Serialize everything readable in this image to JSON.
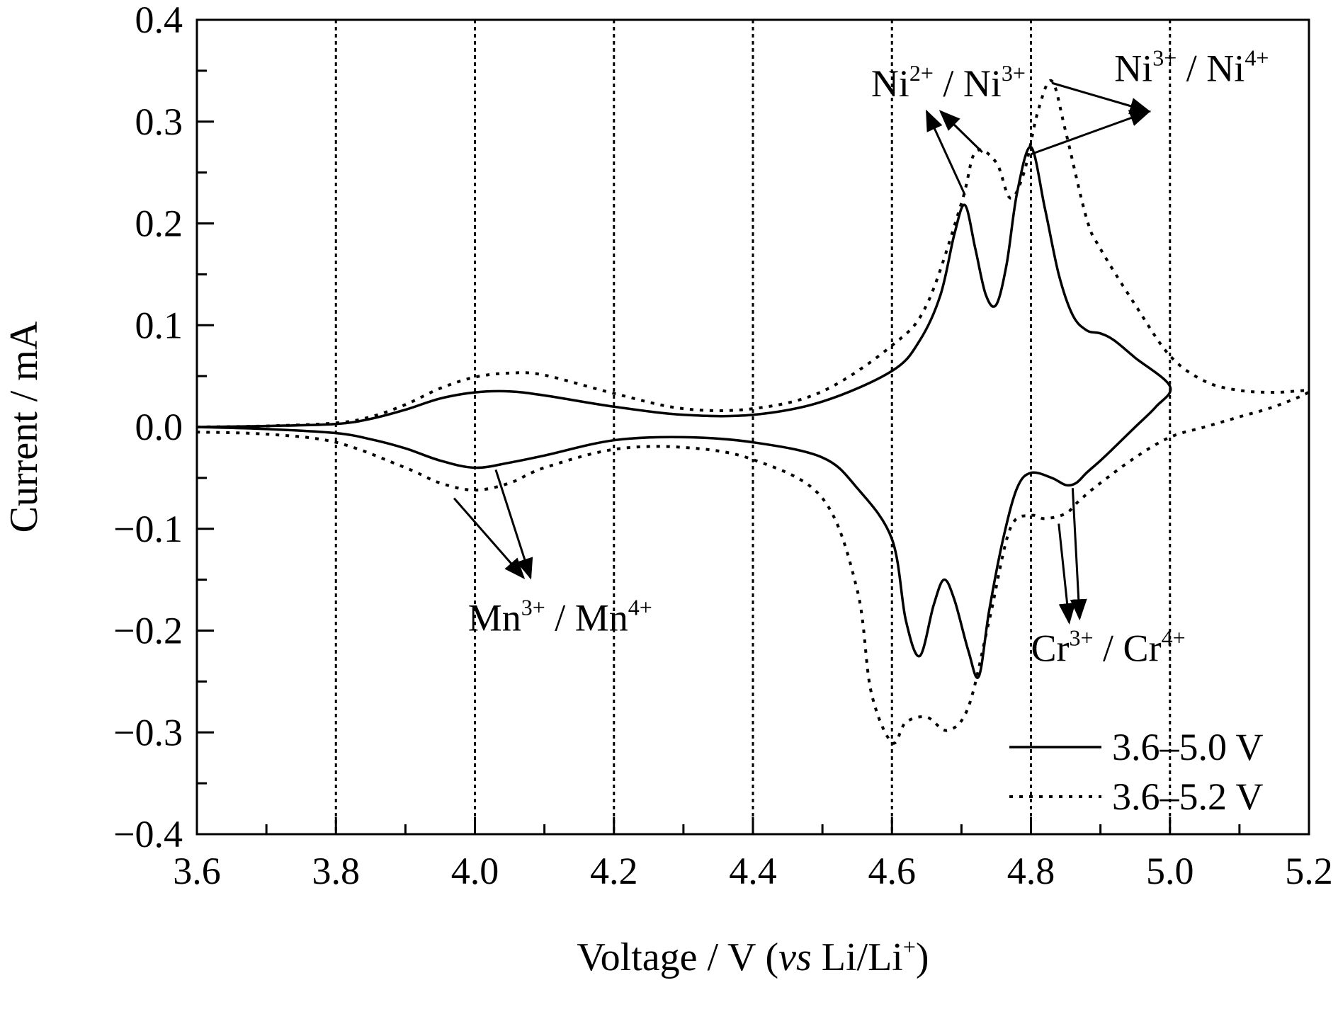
{
  "chart_data": {
    "type": "line",
    "title": "",
    "xlabel": {
      "pre": "Voltage / V (",
      "italic": "vs",
      "mid": " Li/Li",
      "sup": "+",
      "post": ")"
    },
    "ylabel": "Current / mA",
    "xlim": [
      3.6,
      5.2
    ],
    "ylim": [
      -0.4,
      0.4
    ],
    "x_ticks": [
      3.6,
      3.8,
      4.0,
      4.2,
      4.4,
      4.6,
      4.8,
      5.0,
      5.2
    ],
    "x_tick_labels": [
      "3.6",
      "3.8",
      "4.0",
      "4.2",
      "4.4",
      "4.6",
      "4.8",
      "5.0",
      "5.2"
    ],
    "y_ticks": [
      -0.4,
      -0.3,
      -0.2,
      -0.1,
      0.0,
      0.1,
      0.2,
      0.3,
      0.4
    ],
    "y_tick_labels": [
      "−0.4",
      "−0.3",
      "−0.2",
      "−0.1",
      "0.0",
      "0.1",
      "0.2",
      "0.3",
      "0.4"
    ],
    "vertical_gridlines_dotted": [
      3.8,
      4.0,
      4.2,
      4.4,
      4.6,
      4.8,
      5.0
    ],
    "grid": "vertical dotted",
    "legend": {
      "placement": "bottom-right"
    },
    "series": [
      {
        "name": "3.6–5.0 V",
        "style": "solid",
        "color": "#000000",
        "x": [
          3.6,
          3.7,
          3.8,
          3.85,
          3.9,
          3.95,
          4.0,
          4.05,
          4.1,
          4.2,
          4.3,
          4.4,
          4.5,
          4.6,
          4.64,
          4.67,
          4.69,
          4.705,
          4.72,
          4.735,
          4.75,
          4.765,
          4.78,
          4.8,
          4.82,
          4.84,
          4.86,
          4.88,
          4.9,
          4.92,
          4.95,
          5.0,
          4.98,
          4.95,
          4.92,
          4.9,
          4.88,
          4.865,
          4.85,
          4.83,
          4.8,
          4.78,
          4.76,
          4.74,
          4.725,
          4.71,
          4.69,
          4.675,
          4.66,
          4.64,
          4.62,
          4.6,
          4.55,
          4.5,
          4.4,
          4.3,
          4.2,
          4.1,
          4.05,
          4.0,
          3.95,
          3.9,
          3.85,
          3.8,
          3.7,
          3.6
        ],
        "y": [
          0.0,
          0.001,
          0.003,
          0.008,
          0.017,
          0.028,
          0.034,
          0.035,
          0.031,
          0.02,
          0.012,
          0.012,
          0.025,
          0.055,
          0.085,
          0.13,
          0.19,
          0.218,
          0.175,
          0.13,
          0.12,
          0.16,
          0.23,
          0.275,
          0.215,
          0.15,
          0.11,
          0.095,
          0.092,
          0.085,
          0.068,
          0.04,
          0.02,
          0.0,
          -0.02,
          -0.033,
          -0.045,
          -0.055,
          -0.057,
          -0.05,
          -0.045,
          -0.06,
          -0.11,
          -0.18,
          -0.245,
          -0.22,
          -0.17,
          -0.15,
          -0.175,
          -0.225,
          -0.19,
          -0.11,
          -0.06,
          -0.03,
          -0.015,
          -0.01,
          -0.013,
          -0.028,
          -0.035,
          -0.04,
          -0.033,
          -0.021,
          -0.012,
          -0.006,
          -0.002,
          0.0
        ]
      },
      {
        "name": "3.6–5.2 V",
        "style": "dotted",
        "color": "#000000",
        "x": [
          3.6,
          3.7,
          3.8,
          3.85,
          3.9,
          3.95,
          4.0,
          4.05,
          4.1,
          4.2,
          4.3,
          4.4,
          4.5,
          4.6,
          4.65,
          4.7,
          4.72,
          4.75,
          4.77,
          4.79,
          4.81,
          4.83,
          4.85,
          4.88,
          4.9,
          4.95,
          5.0,
          5.05,
          5.1,
          5.15,
          5.2,
          5.15,
          5.1,
          5.05,
          5.0,
          4.95,
          4.9,
          4.87,
          4.85,
          4.82,
          4.8,
          4.77,
          4.74,
          4.71,
          4.68,
          4.65,
          4.62,
          4.6,
          4.57,
          4.55,
          4.5,
          4.4,
          4.3,
          4.2,
          4.1,
          4.05,
          4.0,
          3.95,
          3.9,
          3.8,
          3.7,
          3.6
        ],
        "y": [
          0.0,
          0.001,
          0.004,
          0.01,
          0.022,
          0.038,
          0.049,
          0.053,
          0.051,
          0.033,
          0.018,
          0.018,
          0.035,
          0.08,
          0.12,
          0.22,
          0.27,
          0.26,
          0.225,
          0.25,
          0.31,
          0.34,
          0.29,
          0.205,
          0.175,
          0.12,
          0.07,
          0.045,
          0.036,
          0.034,
          0.035,
          0.02,
          0.01,
          0.0,
          -0.01,
          -0.03,
          -0.055,
          -0.072,
          -0.085,
          -0.09,
          -0.087,
          -0.1,
          -0.19,
          -0.275,
          -0.298,
          -0.285,
          -0.29,
          -0.31,
          -0.26,
          -0.16,
          -0.07,
          -0.032,
          -0.02,
          -0.022,
          -0.04,
          -0.055,
          -0.062,
          -0.055,
          -0.04,
          -0.015,
          -0.007,
          -0.005
        ]
      }
    ],
    "annotations": [
      {
        "id": "ni23",
        "parts": [
          {
            "t": "Ni"
          },
          {
            "t": "2+",
            "sup": true
          },
          {
            "t": " / Ni"
          },
          {
            "t": "3+",
            "sup": true
          }
        ],
        "x": 4.57,
        "y": 0.325,
        "arrows": [
          {
            "from": [
              4.705,
              0.228
            ],
            "to": [
              4.65,
              0.31
            ]
          },
          {
            "from": [
              4.73,
              0.27
            ],
            "to": [
              4.67,
              0.31
            ]
          }
        ]
      },
      {
        "id": "ni34",
        "parts": [
          {
            "t": "Ni"
          },
          {
            "t": "3+",
            "sup": true
          },
          {
            "t": " / Ni"
          },
          {
            "t": "4+",
            "sup": true
          }
        ],
        "x": 4.92,
        "y": 0.34,
        "arrows": [
          {
            "from": [
              4.83,
              0.338
            ],
            "to": [
              4.97,
              0.31
            ]
          },
          {
            "from": [
              4.8,
              0.268
            ],
            "to": [
              4.97,
              0.31
            ]
          }
        ]
      },
      {
        "id": "mn34",
        "parts": [
          {
            "t": "Mn"
          },
          {
            "t": "3+",
            "sup": true
          },
          {
            "t": " / Mn"
          },
          {
            "t": "4+",
            "sup": true
          }
        ],
        "x": 3.99,
        "y": -0.2,
        "arrows": [
          {
            "from": [
              4.03,
              -0.042
            ],
            "to": [
              4.08,
              -0.148
            ]
          },
          {
            "from": [
              3.97,
              -0.07
            ],
            "to": [
              4.07,
              -0.148
            ]
          }
        ]
      },
      {
        "id": "cr34",
        "parts": [
          {
            "t": "Cr"
          },
          {
            "t": "3+",
            "sup": true
          },
          {
            "t": " / Cr"
          },
          {
            "t": "4+",
            "sup": true
          }
        ],
        "x": 4.8,
        "y": -0.23,
        "arrows": [
          {
            "from": [
              4.84,
              -0.095
            ],
            "to": [
              4.855,
              -0.192
            ]
          },
          {
            "from": [
              4.86,
              -0.06
            ],
            "to": [
              4.87,
              -0.188
            ]
          }
        ]
      }
    ]
  }
}
